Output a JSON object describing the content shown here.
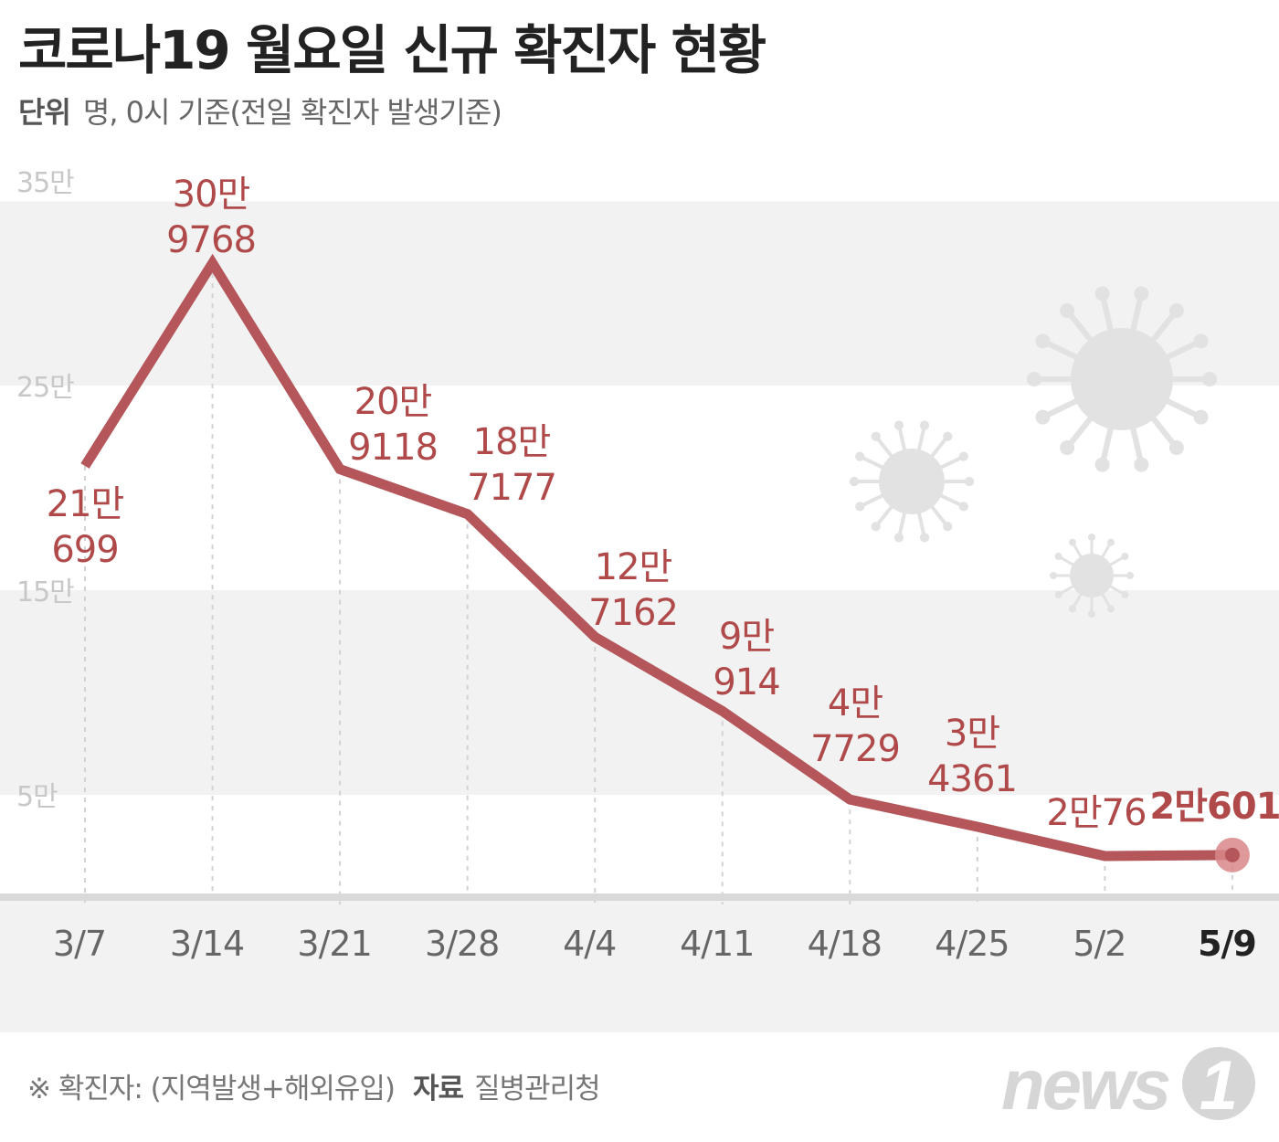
{
  "title": "코로나19 월요일 신규 확진자 현황",
  "unit": {
    "label": "단위",
    "text": "명, 0시 기준(전일 확진자 발생기준)"
  },
  "footer": {
    "note": "※ 확진자: (지역발생+해외유입)",
    "source_label": "자료",
    "source": "질병관리청"
  },
  "logo": {
    "text": "news",
    "numeral": "1"
  },
  "colors": {
    "line": "#b5565a",
    "label": "#b04a4a",
    "band": "#f2f2f2",
    "axis_label": "#666666",
    "last_tick": "#222222",
    "y_label": "#c8c8c8",
    "virus": "#e2e2e2"
  },
  "chart_data": {
    "type": "line",
    "title": "코로나19 월요일 신규 확진자 현황",
    "x": [
      "3/7",
      "3/14",
      "3/21",
      "3/28",
      "4/4",
      "4/11",
      "4/18",
      "4/25",
      "5/2",
      "5/9"
    ],
    "values": [
      210699,
      309768,
      209118,
      187177,
      127162,
      90914,
      47729,
      34361,
      20076,
      20601
    ],
    "value_labels": [
      [
        "21만",
        "699"
      ],
      [
        "30만",
        "9768"
      ],
      [
        "20만",
        "9118"
      ],
      [
        "18만",
        "7177"
      ],
      [
        "12만",
        "7162"
      ],
      [
        "9만",
        "914"
      ],
      [
        "4만",
        "7729"
      ],
      [
        "3만",
        "4361"
      ],
      [
        "2만76"
      ],
      [
        "2만601"
      ]
    ],
    "yticks": [
      {
        "value": 350000,
        "label": "35만"
      },
      {
        "value": 250000,
        "label": "25만"
      },
      {
        "value": 150000,
        "label": "15만"
      },
      {
        "value": 50000,
        "label": "5만"
      }
    ],
    "ylim": [
      0,
      350000
    ],
    "highlight_last": true
  }
}
